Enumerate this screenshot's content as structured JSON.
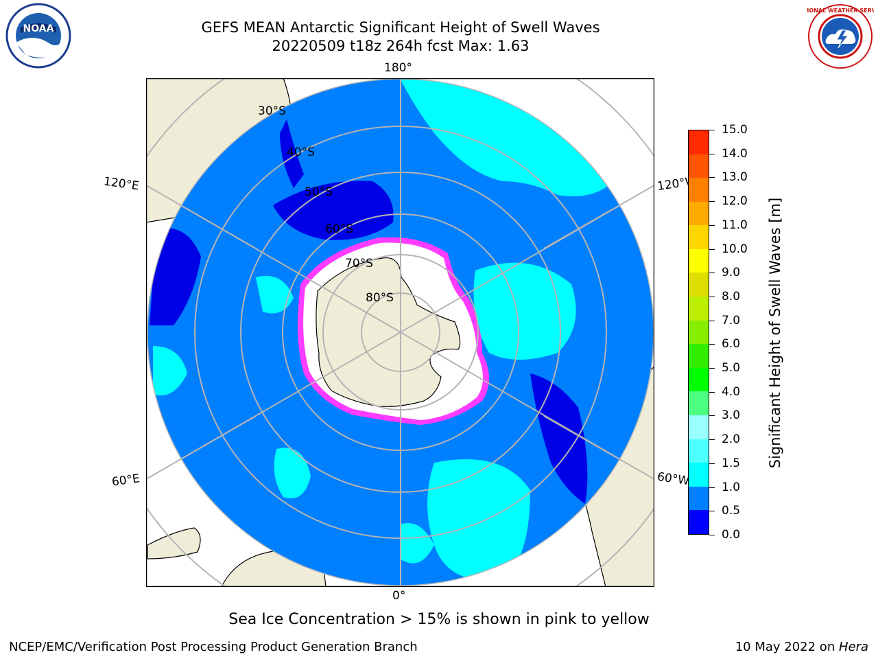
{
  "header": {
    "title_line1": "GEFS MEAN Antarctic Significant Height of Swell Waves",
    "title_line2": "20220509 t18z 264h fcst   Max: 1.63"
  },
  "map": {
    "projection": "south-polar-stereographic",
    "longitude_labels": {
      "top": "180°",
      "bottom": "0°",
      "upper_left": "120°E",
      "upper_right": "120°W",
      "lower_left": "60°E",
      "lower_right": "60°W"
    },
    "latitude_labels": [
      "30°S",
      "40°S",
      "50°S",
      "60°S",
      "70°S",
      "80°S"
    ],
    "colors": {
      "ocean_base": "#007fff",
      "low_swell": "#0000e6",
      "mid_swell": "#00ffff",
      "land": "#efedd8",
      "sea_ice": "#ffffff",
      "ice_edge": "#ff3cff",
      "grid": "#b4b4b4"
    }
  },
  "colorbar": {
    "ticks": [
      "0.0",
      "0.5",
      "1.0",
      "1.5",
      "2.0",
      "3.0",
      "4.0",
      "5.0",
      "6.0",
      "7.0",
      "8.0",
      "9.0",
      "10.0",
      "11.0",
      "12.0",
      "13.0",
      "14.0",
      "15.0"
    ],
    "colors": [
      "#0000ff",
      "#007fff",
      "#00ffff",
      "#4dffff",
      "#99ffff",
      "#4dff80",
      "#00ff00",
      "#33ee00",
      "#88ee00",
      "#bbee00",
      "#dddd00",
      "#ffff00",
      "#ffd500",
      "#ffaa00",
      "#ff7f00",
      "#ff5500",
      "#ff2a00"
    ],
    "title": "Significant Height of Swell Waves [m]"
  },
  "note": "Sea Ice Concentration > 15% is shown in pink to yellow",
  "footer": {
    "left": "NCEP/EMC/Verification Post Processing Product Generation Branch",
    "right_date": "10 May 2022 on ",
    "right_host": "Hera"
  },
  "logos": {
    "noaa": "NOAA",
    "nws": "NATIONAL WEATHER SERVICE"
  }
}
